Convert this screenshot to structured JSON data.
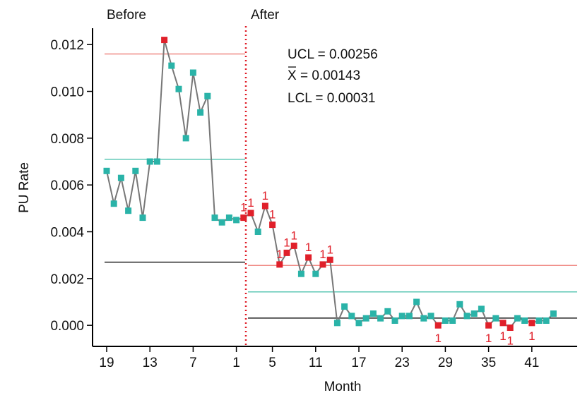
{
  "chart_data": {
    "type": "line",
    "xlabel": "Month",
    "ylabel": "PU Rate",
    "ylim": [
      -0.0009,
      0.0127
    ],
    "x_ticks": [
      "19",
      "13",
      "7",
      "1",
      "5",
      "11",
      "17",
      "23",
      "29",
      "35",
      "41"
    ],
    "y_ticks": [
      "0.000",
      "0.002",
      "0.004",
      "0.006",
      "0.008",
      "0.010",
      "0.012"
    ],
    "phase_labels": {
      "before": "Before",
      "after": "After"
    },
    "stats": {
      "ucl": "UCL = 0.00256",
      "xbar": "X = 0.00143",
      "lcl": "LCL = 0.00031"
    },
    "colors": {
      "in_control": "#2ab3a8",
      "out_of_control": "#e0202a",
      "ucl": "#f08a85",
      "center": "#5cc7b5",
      "lcl": "#222222",
      "line": "#777777",
      "divider": "#e0202a"
    },
    "phases": [
      {
        "name": "Before",
        "ucl": 0.0116,
        "center": 0.0071,
        "lcl": 0.0027
      },
      {
        "name": "After",
        "ucl": 0.00256,
        "center": 0.00143,
        "lcl": 0.00031
      }
    ],
    "flag_label": "1",
    "series": [
      {
        "points": [
          {
            "pos": -19,
            "y": 0.0066,
            "flag": false
          },
          {
            "pos": -18,
            "y": 0.0052,
            "flag": false
          },
          {
            "pos": -17,
            "y": 0.0063,
            "flag": false
          },
          {
            "pos": -16,
            "y": 0.0049,
            "flag": false
          },
          {
            "pos": -15,
            "y": 0.0066,
            "flag": false
          },
          {
            "pos": -14,
            "y": 0.0046,
            "flag": false
          },
          {
            "pos": -13,
            "y": 0.007,
            "flag": false
          },
          {
            "pos": -12,
            "y": 0.007,
            "flag": false
          },
          {
            "pos": -11,
            "y": 0.0122,
            "flag": true
          },
          {
            "pos": -10,
            "y": 0.0111,
            "flag": false
          },
          {
            "pos": -9,
            "y": 0.0101,
            "flag": false
          },
          {
            "pos": -8,
            "y": 0.008,
            "flag": false
          },
          {
            "pos": -7,
            "y": 0.0108,
            "flag": false
          },
          {
            "pos": -6,
            "y": 0.0091,
            "flag": false
          },
          {
            "pos": -5,
            "y": 0.0098,
            "flag": false
          },
          {
            "pos": -4,
            "y": 0.0046,
            "flag": false
          },
          {
            "pos": -3,
            "y": 0.0044,
            "flag": false
          },
          {
            "pos": -2,
            "y": 0.0046,
            "flag": false
          },
          {
            "pos": -1,
            "y": 0.0045,
            "flag": false
          },
          {
            "pos": 1,
            "y": 0.0046,
            "flag": true
          },
          {
            "pos": 2,
            "y": 0.0048,
            "flag": true
          },
          {
            "pos": 3,
            "y": 0.004,
            "flag": false
          },
          {
            "pos": 4,
            "y": 0.0051,
            "flag": true
          },
          {
            "pos": 5,
            "y": 0.0043,
            "flag": true
          },
          {
            "pos": 6,
            "y": 0.0026,
            "flag": true
          },
          {
            "pos": 7,
            "y": 0.0031,
            "flag": true
          },
          {
            "pos": 8,
            "y": 0.0034,
            "flag": true
          },
          {
            "pos": 9,
            "y": 0.0022,
            "flag": false
          },
          {
            "pos": 10,
            "y": 0.0029,
            "flag": true
          },
          {
            "pos": 11,
            "y": 0.0022,
            "flag": false
          },
          {
            "pos": 12,
            "y": 0.0026,
            "flag": true
          },
          {
            "pos": 13,
            "y": 0.0028,
            "flag": true
          },
          {
            "pos": 14,
            "y": 0.0001,
            "flag": false
          },
          {
            "pos": 15,
            "y": 0.0008,
            "flag": false
          },
          {
            "pos": 16,
            "y": 0.0004,
            "flag": false
          },
          {
            "pos": 17,
            "y": 0.0001,
            "flag": false
          },
          {
            "pos": 18,
            "y": 0.0003,
            "flag": false
          },
          {
            "pos": 19,
            "y": 0.0005,
            "flag": false
          },
          {
            "pos": 20,
            "y": 0.0003,
            "flag": false
          },
          {
            "pos": 21,
            "y": 0.0006,
            "flag": false
          },
          {
            "pos": 22,
            "y": 0.0002,
            "flag": false
          },
          {
            "pos": 23,
            "y": 0.0004,
            "flag": false
          },
          {
            "pos": 24,
            "y": 0.0004,
            "flag": false
          },
          {
            "pos": 25,
            "y": 0.001,
            "flag": false
          },
          {
            "pos": 26,
            "y": 0.0003,
            "flag": false
          },
          {
            "pos": 27,
            "y": 0.0004,
            "flag": false
          },
          {
            "pos": 28,
            "y": 0.0,
            "flag": true
          },
          {
            "pos": 29,
            "y": 0.0002,
            "flag": false
          },
          {
            "pos": 30,
            "y": 0.0002,
            "flag": false
          },
          {
            "pos": 31,
            "y": 0.0009,
            "flag": false
          },
          {
            "pos": 32,
            "y": 0.0004,
            "flag": false
          },
          {
            "pos": 33,
            "y": 0.0005,
            "flag": false
          },
          {
            "pos": 34,
            "y": 0.0007,
            "flag": false
          },
          {
            "pos": 35,
            "y": 0.0,
            "flag": true
          },
          {
            "pos": 36,
            "y": 0.0003,
            "flag": false
          },
          {
            "pos": 37,
            "y": 0.0001,
            "flag": true
          },
          {
            "pos": 38,
            "y": -0.0001,
            "flag": true
          },
          {
            "pos": 39,
            "y": 0.0003,
            "flag": false
          },
          {
            "pos": 40,
            "y": 0.0002,
            "flag": false
          },
          {
            "pos": 41,
            "y": 0.0001,
            "flag": true
          },
          {
            "pos": 42,
            "y": 0.0002,
            "flag": false
          },
          {
            "pos": 43,
            "y": 0.0002,
            "flag": false
          },
          {
            "pos": 44,
            "y": 0.0005,
            "flag": false
          }
        ]
      }
    ]
  }
}
